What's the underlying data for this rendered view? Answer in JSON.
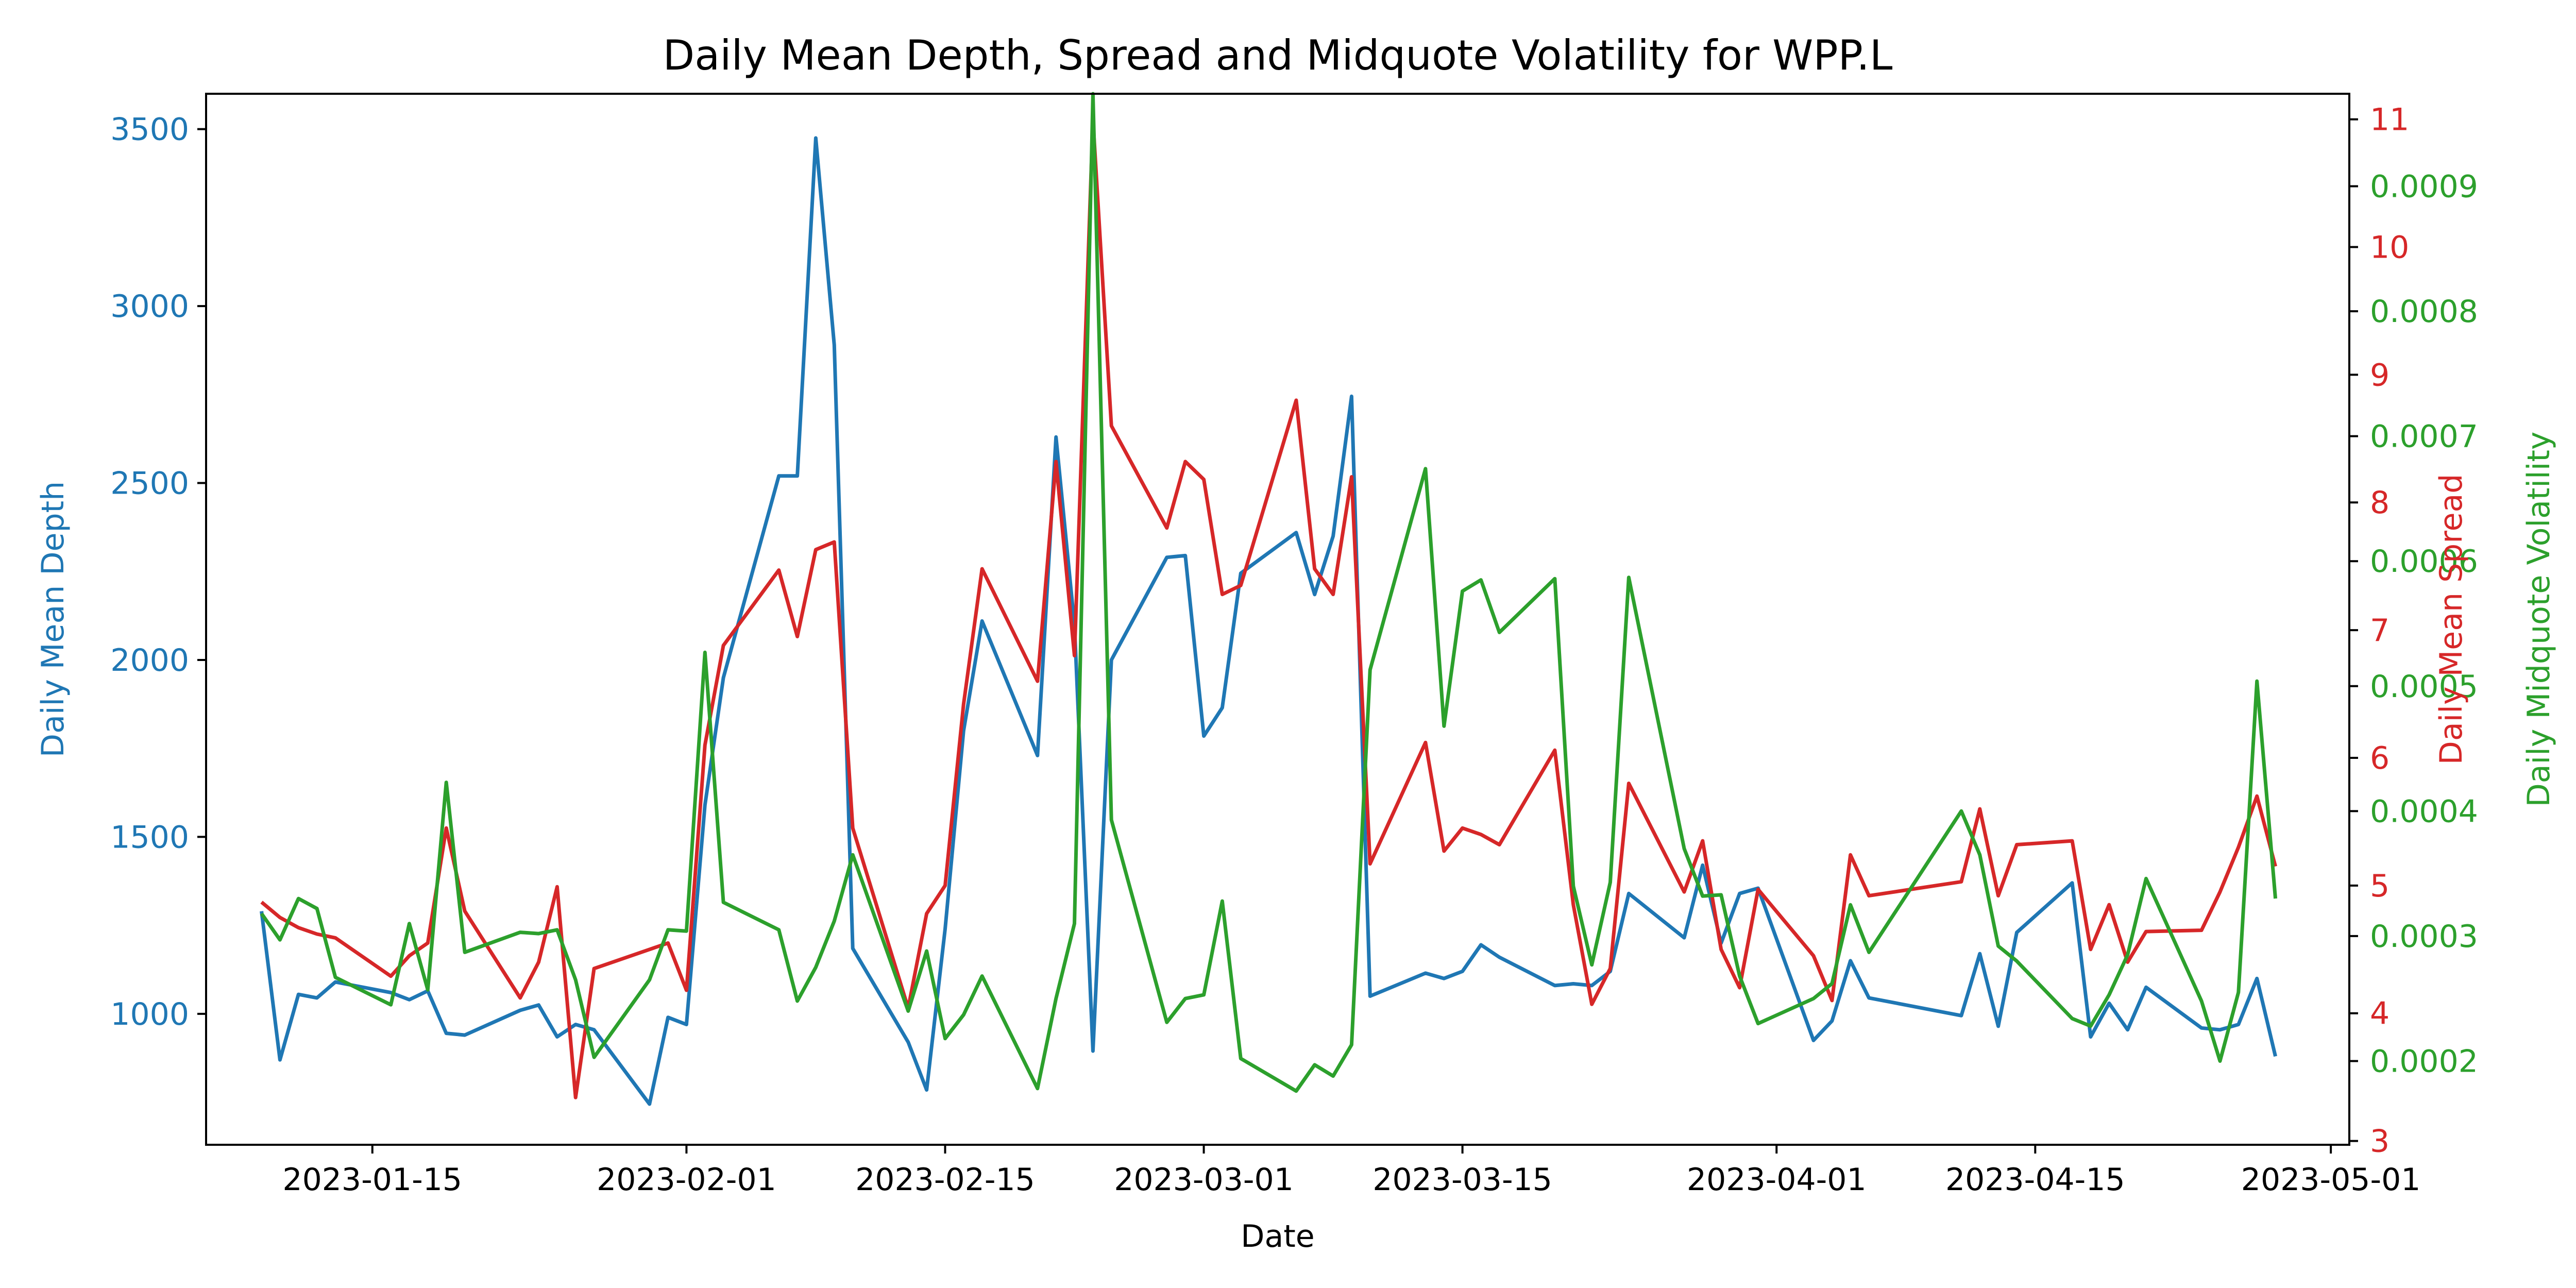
{
  "chart_data": {
    "type": "line",
    "title": "Daily Mean Depth, Spread and Midquote Volatility for WPP.L",
    "xlabel": "Date",
    "x_ticks": [
      "2023-01-15",
      "2023-02-01",
      "2023-02-15",
      "2023-03-01",
      "2023-03-15",
      "2023-04-01",
      "2023-04-15",
      "2023-05-01"
    ],
    "xlim": [
      "2023-01-06",
      "2023-05-02"
    ],
    "grid": false,
    "legend": "none",
    "axes": {
      "depth": {
        "label": "Daily Mean Depth",
        "side": "left",
        "color": "#1f77b4",
        "ylim": [
          630,
          3600
        ],
        "ticks": [
          "1000",
          "1500",
          "2000",
          "2500",
          "3000",
          "3500"
        ]
      },
      "spread": {
        "label": "Daily Mean Spread",
        "side": "right",
        "color": "#d62728",
        "ylim": [
          2.97,
          11.2
        ],
        "ticks": [
          "3",
          "4",
          "5",
          "6",
          "7",
          "8",
          "9",
          "10",
          "11"
        ]
      },
      "volatility": {
        "label": "Daily Midquote Volatility",
        "side": "right",
        "color": "#2ca02c",
        "ylim": [
          0.000133,
          0.000974
        ],
        "ticks": [
          "0.0002",
          "0.0003",
          "0.0004",
          "0.0005",
          "0.0006",
          "0.0007",
          "0.0008",
          "0.0009"
        ]
      }
    },
    "series": [
      {
        "axis": "depth",
        "points": [
          [
            "2023-01-09",
            1290
          ],
          [
            "2023-01-10",
            870
          ],
          [
            "2023-01-11",
            1055
          ],
          [
            "2023-01-12",
            1045
          ],
          [
            "2023-01-13",
            1090
          ],
          [
            "2023-01-16",
            1060
          ],
          [
            "2023-01-17",
            1040
          ],
          [
            "2023-01-18",
            1065
          ],
          [
            "2023-01-19",
            945
          ],
          [
            "2023-01-20",
            940
          ],
          [
            "2023-01-23",
            1010
          ],
          [
            "2023-01-24",
            1025
          ],
          [
            "2023-01-25",
            935
          ],
          [
            "2023-01-26",
            970
          ],
          [
            "2023-01-27",
            955
          ],
          [
            "2023-01-30",
            745
          ],
          [
            "2023-01-31",
            990
          ],
          [
            "2023-02-01",
            970
          ],
          [
            "2023-02-02",
            1590
          ],
          [
            "2023-02-03",
            1950
          ],
          [
            "2023-02-06",
            2520
          ],
          [
            "2023-02-07",
            2520
          ],
          [
            "2023-02-08",
            3475
          ],
          [
            "2023-02-09",
            2890
          ],
          [
            "2023-02-10",
            1185
          ],
          [
            "2023-02-13",
            920
          ],
          [
            "2023-02-14",
            785
          ],
          [
            "2023-02-15",
            1240
          ],
          [
            "2023-02-16",
            1800
          ],
          [
            "2023-02-17",
            2110
          ],
          [
            "2023-02-20",
            1730
          ],
          [
            "2023-02-21",
            2630
          ],
          [
            "2023-02-22",
            2100
          ],
          [
            "2023-02-23",
            895
          ],
          [
            "2023-02-24",
            2000
          ],
          [
            "2023-02-27",
            2290
          ],
          [
            "2023-02-28",
            2295
          ],
          [
            "2023-03-01",
            1785
          ],
          [
            "2023-03-02",
            1865
          ],
          [
            "2023-03-03",
            2245
          ],
          [
            "2023-03-06",
            2360
          ],
          [
            "2023-03-07",
            2185
          ],
          [
            "2023-03-08",
            2350
          ],
          [
            "2023-03-09",
            2745
          ],
          [
            "2023-03-10",
            1050
          ],
          [
            "2023-03-13",
            1115
          ],
          [
            "2023-03-14",
            1100
          ],
          [
            "2023-03-15",
            1120
          ],
          [
            "2023-03-16",
            1195
          ],
          [
            "2023-03-17",
            1160
          ],
          [
            "2023-03-20",
            1080
          ],
          [
            "2023-03-21",
            1085
          ],
          [
            "2023-03-22",
            1080
          ],
          [
            "2023-03-23",
            1120
          ],
          [
            "2023-03-24",
            1340
          ],
          [
            "2023-03-27",
            1215
          ],
          [
            "2023-03-28",
            1420
          ],
          [
            "2023-03-29",
            1200
          ],
          [
            "2023-03-30",
            1340
          ],
          [
            "2023-03-31",
            1355
          ],
          [
            "2023-04-03",
            925
          ],
          [
            "2023-04-04",
            980
          ],
          [
            "2023-04-05",
            1150
          ],
          [
            "2023-04-06",
            1045
          ],
          [
            "2023-04-11",
            995
          ],
          [
            "2023-04-12",
            1170
          ],
          [
            "2023-04-13",
            965
          ],
          [
            "2023-04-14",
            1230
          ],
          [
            "2023-04-17",
            1370
          ],
          [
            "2023-04-18",
            935
          ],
          [
            "2023-04-19",
            1030
          ],
          [
            "2023-04-20",
            955
          ],
          [
            "2023-04-21",
            1075
          ],
          [
            "2023-04-24",
            960
          ],
          [
            "2023-04-25",
            955
          ],
          [
            "2023-04-26",
            970
          ],
          [
            "2023-04-27",
            1100
          ],
          [
            "2023-04-28",
            880
          ]
        ]
      },
      {
        "axis": "spread",
        "points": [
          [
            "2023-01-09",
            4.87
          ],
          [
            "2023-01-10",
            4.75
          ],
          [
            "2023-01-11",
            4.67
          ],
          [
            "2023-01-12",
            4.62
          ],
          [
            "2023-01-13",
            4.59
          ],
          [
            "2023-01-16",
            4.29
          ],
          [
            "2023-01-17",
            4.45
          ],
          [
            "2023-01-18",
            4.55
          ],
          [
            "2023-01-19",
            5.45
          ],
          [
            "2023-01-20",
            4.8
          ],
          [
            "2023-01-23",
            4.12
          ],
          [
            "2023-01-24",
            4.4
          ],
          [
            "2023-01-25",
            4.99
          ],
          [
            "2023-01-26",
            3.34
          ],
          [
            "2023-01-27",
            4.35
          ],
          [
            "2023-01-30",
            4.5
          ],
          [
            "2023-01-31",
            4.55
          ],
          [
            "2023-02-01",
            4.18
          ],
          [
            "2023-02-02",
            6.1
          ],
          [
            "2023-02-03",
            6.88
          ],
          [
            "2023-02-06",
            7.47
          ],
          [
            "2023-02-07",
            6.95
          ],
          [
            "2023-02-08",
            7.63
          ],
          [
            "2023-02-09",
            7.69
          ],
          [
            "2023-02-10",
            5.45
          ],
          [
            "2023-02-13",
            4.04
          ],
          [
            "2023-02-14",
            4.78
          ],
          [
            "2023-02-15",
            5.0
          ],
          [
            "2023-02-16",
            6.42
          ],
          [
            "2023-02-17",
            7.48
          ],
          [
            "2023-02-20",
            6.6
          ],
          [
            "2023-02-21",
            8.32
          ],
          [
            "2023-02-22",
            6.8
          ],
          [
            "2023-02-23",
            11.0
          ],
          [
            "2023-02-24",
            8.6
          ],
          [
            "2023-02-27",
            7.8
          ],
          [
            "2023-02-28",
            8.32
          ],
          [
            "2023-03-01",
            8.18
          ],
          [
            "2023-03-02",
            7.28
          ],
          [
            "2023-03-03",
            7.35
          ],
          [
            "2023-03-06",
            8.8
          ],
          [
            "2023-03-07",
            7.48
          ],
          [
            "2023-03-08",
            7.28
          ],
          [
            "2023-03-09",
            8.2
          ],
          [
            "2023-03-10",
            5.17
          ],
          [
            "2023-03-13",
            6.12
          ],
          [
            "2023-03-14",
            5.27
          ],
          [
            "2023-03-15",
            5.45
          ],
          [
            "2023-03-16",
            5.4
          ],
          [
            "2023-03-17",
            5.32
          ],
          [
            "2023-03-20",
            6.06
          ],
          [
            "2023-03-21",
            4.85
          ],
          [
            "2023-03-22",
            4.07
          ],
          [
            "2023-03-23",
            4.35
          ],
          [
            "2023-03-24",
            5.8
          ],
          [
            "2023-03-27",
            4.95
          ],
          [
            "2023-03-28",
            5.35
          ],
          [
            "2023-03-29",
            4.5
          ],
          [
            "2023-03-30",
            4.2
          ],
          [
            "2023-03-31",
            4.97
          ],
          [
            "2023-04-03",
            4.45
          ],
          [
            "2023-04-04",
            4.1
          ],
          [
            "2023-04-05",
            5.24
          ],
          [
            "2023-04-06",
            4.92
          ],
          [
            "2023-04-11",
            5.03
          ],
          [
            "2023-04-12",
            5.6
          ],
          [
            "2023-04-13",
            4.92
          ],
          [
            "2023-04-14",
            5.32
          ],
          [
            "2023-04-17",
            5.35
          ],
          [
            "2023-04-18",
            4.5
          ],
          [
            "2023-04-19",
            4.85
          ],
          [
            "2023-04-20",
            4.4
          ],
          [
            "2023-04-21",
            4.64
          ],
          [
            "2023-04-24",
            4.65
          ],
          [
            "2023-04-25",
            4.95
          ],
          [
            "2023-04-26",
            5.3
          ],
          [
            "2023-04-27",
            5.7
          ],
          [
            "2023-04-28",
            5.15
          ]
        ]
      },
      {
        "axis": "volatility",
        "points": [
          [
            "2023-01-09",
            0.000318
          ],
          [
            "2023-01-10",
            0.000297
          ],
          [
            "2023-01-11",
            0.00033
          ],
          [
            "2023-01-12",
            0.000322
          ],
          [
            "2023-01-13",
            0.000267
          ],
          [
            "2023-01-16",
            0.000245
          ],
          [
            "2023-01-17",
            0.00031
          ],
          [
            "2023-01-18",
            0.000257
          ],
          [
            "2023-01-19",
            0.000423
          ],
          [
            "2023-01-20",
            0.000287
          ],
          [
            "2023-01-23",
            0.000303
          ],
          [
            "2023-01-24",
            0.000302
          ],
          [
            "2023-01-25",
            0.000305
          ],
          [
            "2023-01-26",
            0.000265
          ],
          [
            "2023-01-27",
            0.000203
          ],
          [
            "2023-01-30",
            0.000265
          ],
          [
            "2023-01-31",
            0.000305
          ],
          [
            "2023-02-01",
            0.000304
          ],
          [
            "2023-02-02",
            0.000527
          ],
          [
            "2023-02-03",
            0.000327
          ],
          [
            "2023-02-06",
            0.000305
          ],
          [
            "2023-02-07",
            0.000248
          ],
          [
            "2023-02-08",
            0.000275
          ],
          [
            "2023-02-09",
            0.000312
          ],
          [
            "2023-02-10",
            0.000365
          ],
          [
            "2023-02-13",
            0.00024
          ],
          [
            "2023-02-14",
            0.000288
          ],
          [
            "2023-02-15",
            0.000218
          ],
          [
            "2023-02-16",
            0.000237
          ],
          [
            "2023-02-17",
            0.000268
          ],
          [
            "2023-02-20",
            0.000178
          ],
          [
            "2023-02-21",
            0.00025
          ],
          [
            "2023-02-22",
            0.00031
          ],
          [
            "2023-02-23",
            0.000974
          ],
          [
            "2023-02-24",
            0.000393
          ],
          [
            "2023-02-27",
            0.000231
          ],
          [
            "2023-02-28",
            0.00025
          ],
          [
            "2023-03-01",
            0.000253
          ],
          [
            "2023-03-02",
            0.000328
          ],
          [
            "2023-03-03",
            0.000202
          ],
          [
            "2023-03-06",
            0.000176
          ],
          [
            "2023-03-07",
            0.000197
          ],
          [
            "2023-03-08",
            0.000188
          ],
          [
            "2023-03-09",
            0.000213
          ],
          [
            "2023-03-10",
            0.000513
          ],
          [
            "2023-03-13",
            0.000674
          ],
          [
            "2023-03-14",
            0.000468
          ],
          [
            "2023-03-15",
            0.000576
          ],
          [
            "2023-03-16",
            0.000585
          ],
          [
            "2023-03-17",
            0.000543
          ],
          [
            "2023-03-20",
            0.000586
          ],
          [
            "2023-03-21",
            0.00034
          ],
          [
            "2023-03-22",
            0.000277
          ],
          [
            "2023-03-23",
            0.000343
          ],
          [
            "2023-03-24",
            0.000587
          ],
          [
            "2023-03-27",
            0.00037
          ],
          [
            "2023-03-28",
            0.000332
          ],
          [
            "2023-03-29",
            0.000333
          ],
          [
            "2023-03-30",
            0.000268
          ],
          [
            "2023-03-31",
            0.00023
          ],
          [
            "2023-04-03",
            0.00025
          ],
          [
            "2023-04-04",
            0.000262
          ],
          [
            "2023-04-05",
            0.000325
          ],
          [
            "2023-04-06",
            0.000287
          ],
          [
            "2023-04-11",
            0.0004
          ],
          [
            "2023-04-12",
            0.000365
          ],
          [
            "2023-04-13",
            0.000292
          ],
          [
            "2023-04-14",
            0.00028
          ],
          [
            "2023-04-17",
            0.000234
          ],
          [
            "2023-04-18",
            0.000228
          ],
          [
            "2023-04-19",
            0.000253
          ],
          [
            "2023-04-20",
            0.000285
          ],
          [
            "2023-04-21",
            0.000346
          ],
          [
            "2023-04-24",
            0.000248
          ],
          [
            "2023-04-25",
            0.0002
          ],
          [
            "2023-04-26",
            0.000255
          ],
          [
            "2023-04-27",
            0.000504
          ],
          [
            "2023-04-28",
            0.00033
          ]
        ]
      }
    ]
  }
}
